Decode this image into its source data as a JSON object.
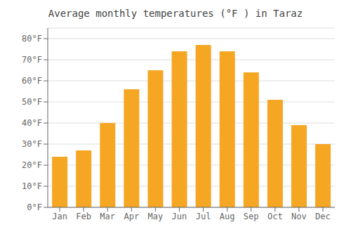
{
  "chart_data": {
    "type": "bar",
    "title": "Average monthly temperatures (°F ) in Taraz",
    "categories": [
      "Jan",
      "Feb",
      "Mar",
      "Apr",
      "May",
      "Jun",
      "Jul",
      "Aug",
      "Sep",
      "Oct",
      "Nov",
      "Dec"
    ],
    "values": [
      24,
      27,
      40,
      56,
      65,
      74,
      77,
      74,
      64,
      51,
      39,
      30
    ],
    "color": "#F5A623",
    "ylim": [
      0,
      85
    ],
    "yticks": [
      {
        "value": 0,
        "label": "0°F"
      },
      {
        "value": 10,
        "label": "10°F"
      },
      {
        "value": 20,
        "label": "20°F"
      },
      {
        "value": 30,
        "label": "30°F"
      },
      {
        "value": 40,
        "label": "40°F"
      },
      {
        "value": 50,
        "label": "50°F"
      },
      {
        "value": 60,
        "label": "60°F"
      },
      {
        "value": 70,
        "label": "70°F"
      },
      {
        "value": 80,
        "label": "80°F"
      }
    ],
    "grid": true
  }
}
